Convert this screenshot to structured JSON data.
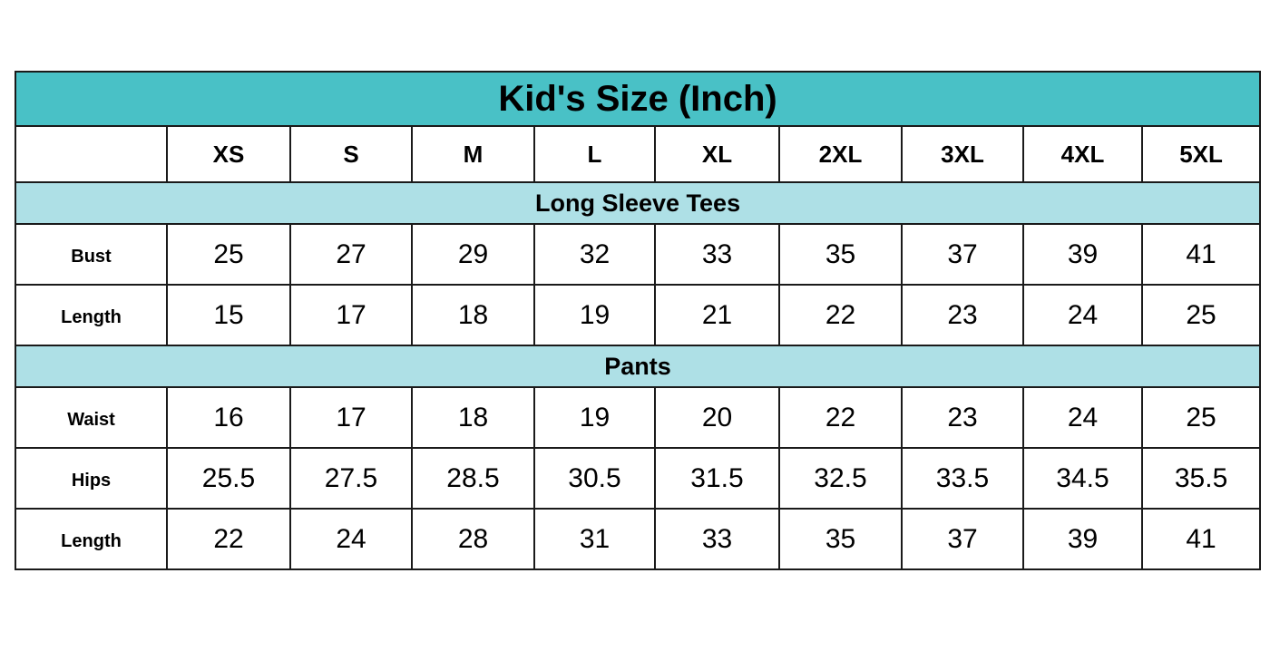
{
  "title": "Kid's Size (Inch)",
  "sizes": [
    "XS",
    "S",
    "M",
    "L",
    "XL",
    "2XL",
    "3XL",
    "4XL",
    "5XL"
  ],
  "sections": [
    {
      "name": "Long Sleeve Tees",
      "rows": [
        {
          "label": "Bust",
          "values": [
            "25",
            "27",
            "29",
            "32",
            "33",
            "35",
            "37",
            "39",
            "41"
          ]
        },
        {
          "label": "Length",
          "values": [
            "15",
            "17",
            "18",
            "19",
            "21",
            "22",
            "23",
            "24",
            "25"
          ]
        }
      ]
    },
    {
      "name": "Pants",
      "rows": [
        {
          "label": "Waist",
          "values": [
            "16",
            "17",
            "18",
            "19",
            "20",
            "22",
            "23",
            "24",
            "25"
          ]
        },
        {
          "label": "Hips",
          "values": [
            "25.5",
            "27.5",
            "28.5",
            "30.5",
            "31.5",
            "32.5",
            "33.5",
            "34.5",
            "35.5"
          ]
        },
        {
          "label": "Length",
          "values": [
            "22",
            "24",
            "28",
            "31",
            "33",
            "35",
            "37",
            "39",
            "41"
          ]
        }
      ]
    }
  ],
  "colors": {
    "title_bg": "#49c1c6",
    "section_bg": "#aee0e6",
    "border": "#1a1a1a"
  }
}
